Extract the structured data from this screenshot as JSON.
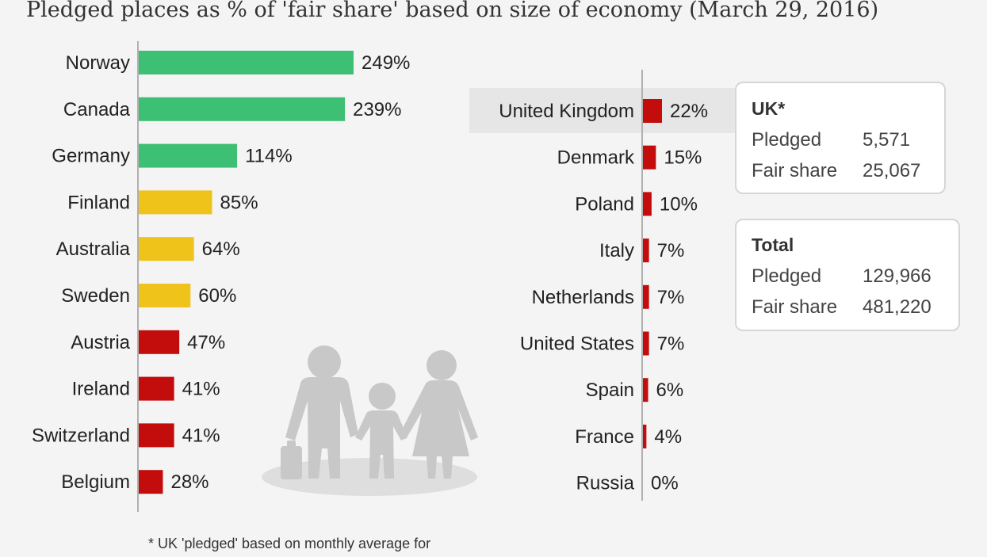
{
  "chart_data": {
    "type": "bar",
    "orientation": "horizontal",
    "title": "Pledged places as % of 'fair share' based on size of economy (March 29, 2016)",
    "value_suffix": "%",
    "colors": {
      "above_100": "#3dbf74",
      "between_50_100": "#f0c31a",
      "below_50": "#c30c0c",
      "highlight_row": "#e6e6e6",
      "axis": "#b0b0b0",
      "icon": "#c8c8c8"
    },
    "panels": [
      {
        "categories": [
          "Norway",
          "Canada",
          "Germany",
          "Finland",
          "Australia",
          "Sweden",
          "Austria",
          "Ireland",
          "Switzerland",
          "Belgium"
        ],
        "values": [
          249,
          239,
          114,
          85,
          64,
          60,
          47,
          41,
          41,
          28
        ]
      },
      {
        "categories": [
          "United Kingdom",
          "Denmark",
          "Poland",
          "Italy",
          "Netherlands",
          "United States",
          "Spain",
          "France",
          "Russia"
        ],
        "values": [
          22,
          15,
          10,
          7,
          7,
          7,
          6,
          4,
          0
        ],
        "highlighted_category": "United Kingdom"
      }
    ]
  },
  "info_boxes": [
    {
      "title": "UK*",
      "rows": [
        {
          "label": "Pledged",
          "value": "5,571"
        },
        {
          "label": "Fair share",
          "value": "25,067"
        }
      ]
    },
    {
      "title": "Total",
      "rows": [
        {
          "label": "Pledged",
          "value": "129,966"
        },
        {
          "label": "Fair share",
          "value": "481,220"
        }
      ]
    }
  ],
  "footnote": "* UK 'pledged' based on monthly average for",
  "illustration_icon": "refugee-family-icon"
}
